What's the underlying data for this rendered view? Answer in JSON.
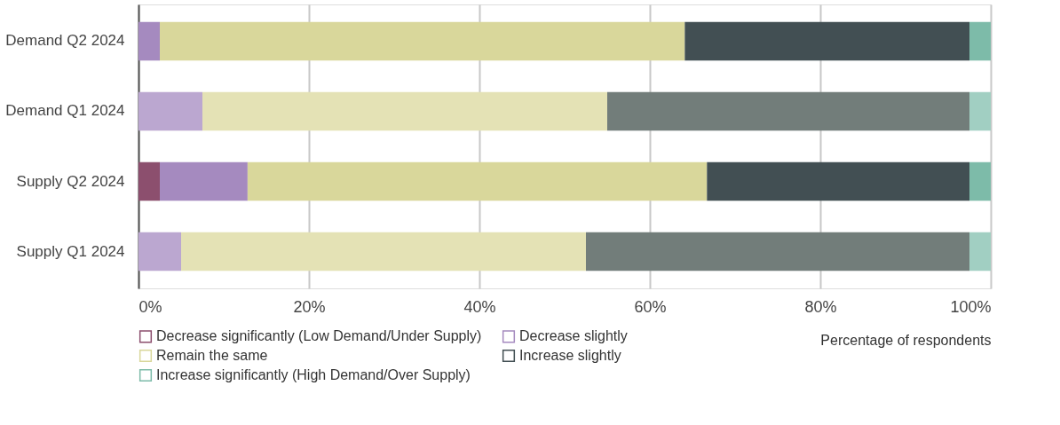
{
  "chart_data": {
    "type": "bar",
    "orientation": "horizontal",
    "stacked": true,
    "xlabel": "Percentage of respondents",
    "categories": [
      "Demand Q2 2024",
      "Demand Q1 2024",
      "Supply Q2 2024",
      "Supply Q1 2024"
    ],
    "series": [
      {
        "name": "Decrease significantly (Low Demand/Under Supply)",
        "color": "#8c4f6e",
        "colors": [
          "#8c4f6e",
          "#c4a8b8",
          "#8c4f6e",
          "#c4a8b8"
        ],
        "values": [
          0,
          0,
          2.5,
          0
        ]
      },
      {
        "name": "Decrease slightly",
        "color": "#a58abf",
        "colors": [
          "#a58abf",
          "#bba7d0",
          "#a58abf",
          "#bba7d0"
        ],
        "values": [
          2.5,
          7.5,
          10.3,
          5
        ]
      },
      {
        "name": "Remain the same",
        "color": "#d9d79b",
        "colors": [
          "#d9d79b",
          "#e4e2b5",
          "#d9d79b",
          "#e4e2b5"
        ],
        "values": [
          61.6,
          47.5,
          53.9,
          47.5
        ]
      },
      {
        "name": "Increase slightly",
        "color": "#424f53",
        "colors": [
          "#424f53",
          "#727d7a",
          "#424f53",
          "#727d7a"
        ],
        "values": [
          33.4,
          42.5,
          30.8,
          45
        ]
      },
      {
        "name": "Increase significantly (High Demand/Over Supply)",
        "color": "#7dbba9",
        "colors": [
          "#7dbba9",
          "#a1cfc2",
          "#7dbba9",
          "#a1cfc2"
        ],
        "values": [
          2.5,
          2.5,
          2.5,
          2.5
        ]
      }
    ],
    "xlim": [
      0,
      100
    ],
    "xticks": [
      {
        "value": 0,
        "label": "0%"
      },
      {
        "value": 20,
        "label": "20%"
      },
      {
        "value": 40,
        "label": "40%"
      },
      {
        "value": 60,
        "label": "60%"
      },
      {
        "value": 80,
        "label": "80%"
      },
      {
        "value": 100,
        "label": "100%"
      }
    ],
    "grid": "x",
    "legend": "bottom"
  }
}
